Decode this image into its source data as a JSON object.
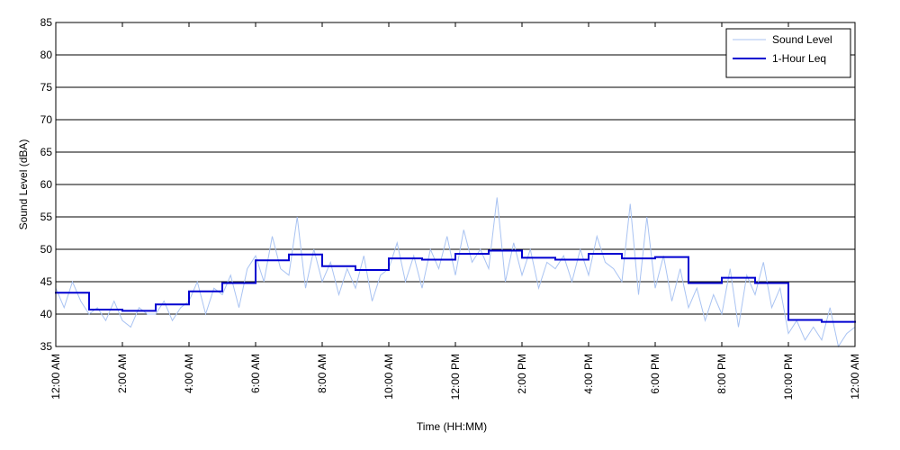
{
  "chart_data": {
    "type": "line",
    "xlabel": "Time (HH:MM)",
    "ylabel": "Sound Level (dBA)",
    "xlim": [
      0,
      24
    ],
    "xticks": [
      {
        "value": 0,
        "label": "12:00 AM"
      },
      {
        "value": 2,
        "label": "2:00 AM"
      },
      {
        "value": 4,
        "label": "4:00 AM"
      },
      {
        "value": 6,
        "label": "6:00 AM"
      },
      {
        "value": 8,
        "label": "8:00 AM"
      },
      {
        "value": 10,
        "label": "10:00 AM"
      },
      {
        "value": 12,
        "label": "12:00 PM"
      },
      {
        "value": 14,
        "label": "2:00 PM"
      },
      {
        "value": 16,
        "label": "4:00 PM"
      },
      {
        "value": 18,
        "label": "6:00 PM"
      },
      {
        "value": 20,
        "label": "8:00 PM"
      },
      {
        "value": 22,
        "label": "10:00 PM"
      },
      {
        "value": 24,
        "label": "12:00 AM"
      }
    ],
    "ylim": [
      35,
      85
    ],
    "yticks": [
      35,
      40,
      45,
      50,
      55,
      60,
      65,
      70,
      75,
      80,
      85
    ],
    "grid": true,
    "legend": "upper right",
    "series": [
      {
        "name": "Sound Level",
        "color": "#a9c3f2",
        "width": 1,
        "x": [
          0,
          0.25,
          0.5,
          0.75,
          1,
          1.25,
          1.5,
          1.75,
          2,
          2.25,
          2.5,
          2.75,
          3,
          3.25,
          3.5,
          3.75,
          4,
          4.25,
          4.5,
          4.75,
          5,
          5.25,
          5.5,
          5.75,
          6,
          6.25,
          6.5,
          6.75,
          7,
          7.25,
          7.5,
          7.75,
          8,
          8.25,
          8.5,
          8.75,
          9,
          9.25,
          9.5,
          9.75,
          10,
          10.25,
          10.5,
          10.75,
          11,
          11.25,
          11.5,
          11.75,
          12,
          12.25,
          12.5,
          12.75,
          13,
          13.25,
          13.5,
          13.75,
          14,
          14.25,
          14.5,
          14.75,
          15,
          15.25,
          15.5,
          15.75,
          16,
          16.25,
          16.5,
          16.75,
          17,
          17.25,
          17.5,
          17.75,
          18,
          18.25,
          18.5,
          18.75,
          19,
          19.25,
          19.5,
          19.75,
          20,
          20.25,
          20.5,
          20.75,
          21,
          21.25,
          21.5,
          21.75,
          22,
          22.25,
          22.5,
          22.75,
          23,
          23.25,
          23.5,
          23.75,
          24
        ],
        "values": [
          44,
          41,
          45,
          42,
          40,
          41,
          39,
          42,
          39,
          38,
          41,
          40,
          40,
          42,
          39,
          41,
          42,
          45,
          40,
          44,
          43,
          46,
          41,
          47,
          49,
          45,
          52,
          47,
          46,
          55,
          44,
          50,
          45,
          48,
          43,
          47,
          44,
          49,
          42,
          46,
          47,
          51,
          45,
          49,
          44,
          50,
          47,
          52,
          46,
          53,
          48,
          50,
          47,
          58,
          45,
          51,
          46,
          50,
          44,
          48,
          47,
          49,
          45,
          50,
          46,
          52,
          48,
          47,
          45,
          57,
          43,
          55,
          44,
          49,
          42,
          47,
          41,
          44,
          39,
          43,
          40,
          47,
          38,
          46,
          43,
          48,
          41,
          44,
          37,
          39,
          36,
          38,
          36,
          41,
          35,
          37,
          38
        ]
      },
      {
        "name": "1-Hour Leq",
        "color": "#0000d0",
        "width": 2,
        "step": "post",
        "x": [
          0,
          1,
          2,
          3,
          4,
          5,
          6,
          7,
          8,
          9,
          10,
          11,
          12,
          13,
          14,
          15,
          16,
          17,
          18,
          19,
          20,
          21,
          22,
          23
        ],
        "values": [
          43.3,
          40.7,
          40.5,
          41.5,
          43.5,
          44.8,
          48.3,
          49.2,
          47.4,
          46.8,
          48.6,
          48.4,
          49.3,
          49.8,
          48.7,
          48.4,
          49.3,
          48.6,
          48.8,
          44.8,
          45.6,
          44.8,
          39.1,
          38.8
        ]
      }
    ]
  }
}
